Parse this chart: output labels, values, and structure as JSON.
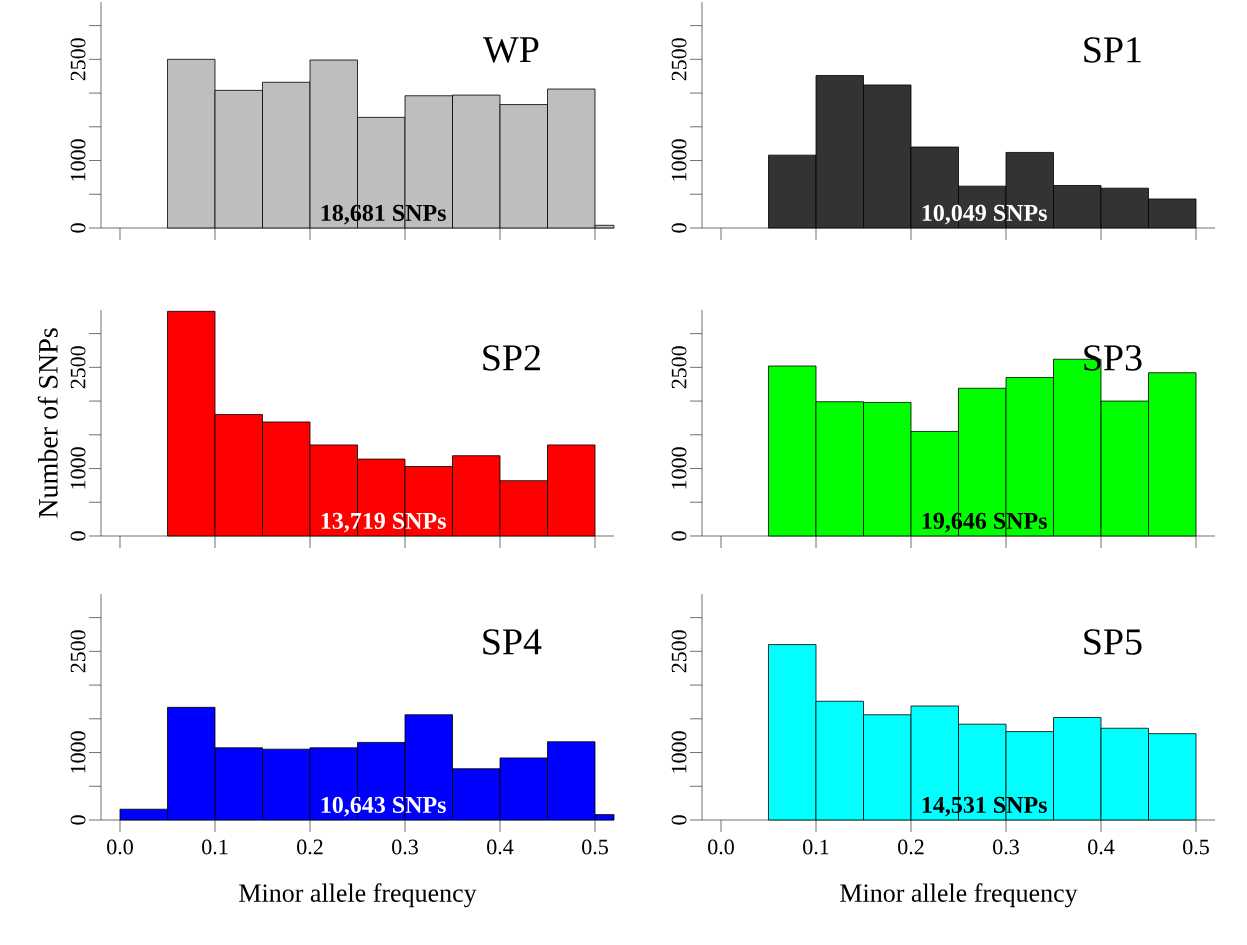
{
  "chart_data": [
    {
      "type": "histogram",
      "title": "WP",
      "color": "#bebebe",
      "bins": [
        0.05,
        0.1,
        0.15,
        0.2,
        0.25,
        0.3,
        0.35,
        0.4,
        0.45,
        0.5,
        0.52
      ],
      "values": [
        2500,
        2040,
        2160,
        2490,
        1640,
        1960,
        1970,
        1830,
        2060,
        40
      ],
      "annotations": [
        "18,681 SNPs"
      ],
      "xlim": [
        -0.02,
        0.52
      ],
      "ylim": [
        0,
        3350
      ],
      "xticks": [
        0,
        0.1,
        0.2,
        0.3,
        0.4,
        0.5
      ],
      "yticks": [
        0,
        {
          "value": 500,
          "label": null
        },
        1000,
        {
          "value": 1500,
          "label": null
        },
        {
          "value": 2000,
          "label": null
        },
        2500,
        {
          "value": 3000,
          "label": null
        }
      ],
      "tick_labels": "y"
    },
    {
      "type": "histogram",
      "title": "SP1",
      "color": "#333333",
      "bins": [
        0.05,
        0.1,
        0.15,
        0.2,
        0.25,
        0.3,
        0.35,
        0.4,
        0.45,
        0.5
      ],
      "values": [
        1080,
        2260,
        2120,
        1200,
        620,
        1120,
        630,
        590,
        430
      ],
      "annotations": [
        "10,049 SNPs"
      ],
      "xlim": [
        -0.02,
        0.52
      ],
      "ylim": [
        0,
        3350
      ],
      "xticks": [
        0,
        0.1,
        0.2,
        0.3,
        0.4,
        0.5
      ],
      "yticks": [
        0,
        {
          "value": 500,
          "label": null
        },
        1000,
        {
          "value": 1500,
          "label": null
        },
        {
          "value": 2000,
          "label": null
        },
        2500,
        {
          "value": 3000,
          "label": null
        }
      ],
      "tick_labels": "y"
    },
    {
      "type": "histogram",
      "title": "SP2",
      "ylabel": "Number of SNPs",
      "color": "#ff0000",
      "bins": [
        0.05,
        0.1,
        0.15,
        0.2,
        0.25,
        0.3,
        0.35,
        0.4,
        0.45,
        0.5
      ],
      "values": [
        3330,
        1800,
        1690,
        1350,
        1140,
        1030,
        1190,
        820,
        1350
      ],
      "annotations": [
        "13,719 SNPs"
      ],
      "xlim": [
        -0.02,
        0.52
      ],
      "ylim": [
        0,
        3350
      ],
      "xticks": [
        0,
        0.1,
        0.2,
        0.3,
        0.4,
        0.5
      ],
      "yticks": [
        0,
        {
          "value": 500,
          "label": null
        },
        1000,
        {
          "value": 1500,
          "label": null
        },
        {
          "value": 2000,
          "label": null
        },
        2500,
        {
          "value": 3000,
          "label": null
        }
      ],
      "tick_labels": "y"
    },
    {
      "type": "histogram",
      "title": "SP3",
      "color": "#00ff00",
      "bins": [
        0.05,
        0.1,
        0.15,
        0.2,
        0.25,
        0.3,
        0.35,
        0.4,
        0.45,
        0.5
      ],
      "values": [
        2520,
        1990,
        1980,
        1550,
        2190,
        2350,
        2620,
        2000,
        2420
      ],
      "annotations": [
        "19,646 SNPs"
      ],
      "xlim": [
        -0.02,
        0.52
      ],
      "ylim": [
        0,
        3350
      ],
      "xticks": [
        0,
        0.1,
        0.2,
        0.3,
        0.4,
        0.5
      ],
      "yticks": [
        0,
        {
          "value": 500,
          "label": null
        },
        1000,
        {
          "value": 1500,
          "label": null
        },
        {
          "value": 2000,
          "label": null
        },
        2500,
        {
          "value": 3000,
          "label": null
        }
      ],
      "tick_labels": "y"
    },
    {
      "type": "histogram",
      "title": "SP4",
      "xlabel": "Minor allele frequency",
      "color": "#0000ff",
      "bins": [
        0,
        0.05,
        0.1,
        0.15,
        0.2,
        0.25,
        0.3,
        0.35,
        0.4,
        0.45,
        0.5,
        0.52
      ],
      "values": [
        160,
        1670,
        1070,
        1050,
        1070,
        1150,
        1560,
        760,
        920,
        1160,
        80
      ],
      "annotations": [
        "10,643 SNPs"
      ],
      "xlim": [
        -0.02,
        0.52
      ],
      "ylim": [
        0,
        3350
      ],
      "xticks": [
        {
          "value": 0,
          "label": "0.0"
        },
        {
          "value": 0.1,
          "label": "0.1"
        },
        {
          "value": 0.2,
          "label": "0.2"
        },
        {
          "value": 0.3,
          "label": "0.3"
        },
        {
          "value": 0.4,
          "label": "0.4"
        },
        {
          "value": 0.5,
          "label": "0.5"
        }
      ],
      "yticks": [
        0,
        {
          "value": 500,
          "label": null
        },
        1000,
        {
          "value": 1500,
          "label": null
        },
        {
          "value": 2000,
          "label": null
        },
        2500,
        {
          "value": 3000,
          "label": null
        }
      ]
    },
    {
      "type": "histogram",
      "title": "SP5",
      "xlabel": "Minor allele frequency",
      "color": "#00ffff",
      "bins": [
        0.05,
        0.1,
        0.15,
        0.2,
        0.25,
        0.3,
        0.35,
        0.4,
        0.45,
        0.5
      ],
      "values": [
        2600,
        1760,
        1560,
        1690,
        1420,
        1310,
        1520,
        1360,
        1280
      ],
      "annotations": [
        "14,531 SNPs"
      ],
      "xlim": [
        -0.02,
        0.52
      ],
      "ylim": [
        0,
        3350
      ],
      "xticks": [
        {
          "value": 0,
          "label": "0.0"
        },
        {
          "value": 0.1,
          "label": "0.1"
        },
        {
          "value": 0.2,
          "label": "0.2"
        },
        {
          "value": 0.3,
          "label": "0.3"
        },
        {
          "value": 0.4,
          "label": "0.4"
        },
        {
          "value": 0.5,
          "label": "0.5"
        }
      ],
      "yticks": [
        0,
        {
          "value": 500,
          "label": null
        },
        1000,
        {
          "value": 1500,
          "label": null
        },
        {
          "value": 2000,
          "label": null
        },
        2500,
        {
          "value": 3000,
          "label": null
        }
      ]
    }
  ]
}
